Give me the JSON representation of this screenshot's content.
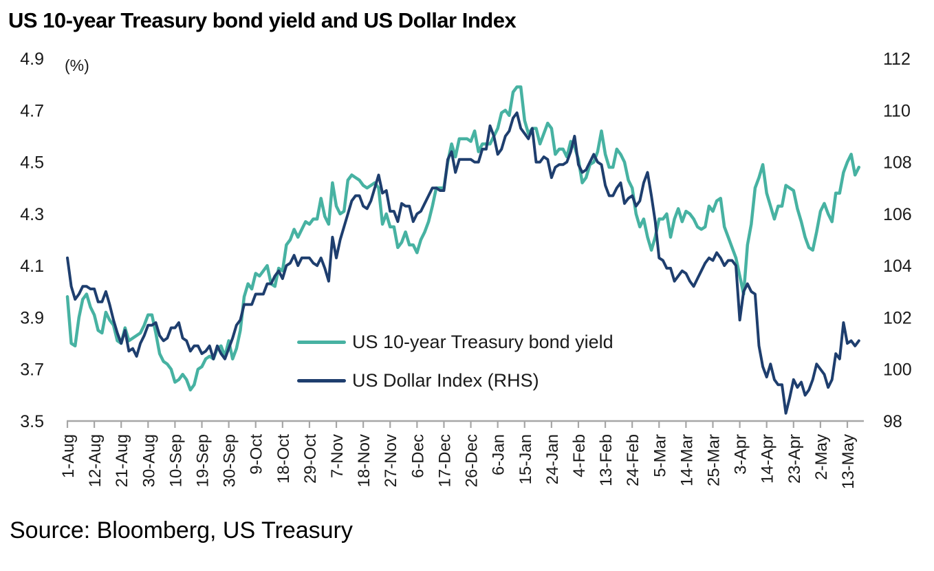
{
  "title": "US 10-year Treasury bond yield and US Dollar Index",
  "source": "Source: Bloomberg, US Treasury",
  "colors": {
    "bond_yield": "#47B2A2",
    "dollar_index": "#1E3E6E",
    "axis": "#A6A6A6",
    "text": "#1a1a1a"
  },
  "chart_data": {
    "type": "line",
    "title": "US 10-year Treasury bond yield and US Dollar Index",
    "grid": false,
    "legend_position": "inside-center-left",
    "left_axis": {
      "label": "(%)",
      "min": 3.5,
      "max": 4.9,
      "ticks": [
        4.9,
        4.7,
        4.5,
        4.3,
        4.1,
        3.9,
        3.7,
        3.5
      ]
    },
    "right_axis": {
      "min": 98,
      "max": 112,
      "ticks": [
        112,
        110,
        108,
        106,
        104,
        102,
        100,
        98
      ]
    },
    "x_axis": {
      "description": "daily (weekday) observations, 1-Aug-2024 to 16-May-2025",
      "points": 207,
      "tick_labels": [
        "1-Aug",
        "12-Aug",
        "21-Aug",
        "30-Aug",
        "10-Sep",
        "19-Sep",
        "30-Sep",
        "9-Oct",
        "18-Oct",
        "29-Oct",
        "7-Nov",
        "18-Nov",
        "27-Nov",
        "6-Dec",
        "17-Dec",
        "26-Dec",
        "6-Jan",
        "15-Jan",
        "24-Jan",
        "4-Feb",
        "13-Feb",
        "24-Feb",
        "5-Mar",
        "14-Mar",
        "25-Mar",
        "3-Apr",
        "14-Apr",
        "23-Apr",
        "2-May",
        "13-May"
      ],
      "tick_indices": [
        0,
        7,
        14,
        21,
        28,
        35,
        42,
        49,
        56,
        63,
        70,
        77,
        84,
        91,
        98,
        105,
        112,
        119,
        126,
        133,
        140,
        147,
        154,
        161,
        168,
        175,
        182,
        189,
        196,
        203
      ]
    },
    "series": [
      {
        "name": "US 10-year Treasury bond yield",
        "axis": "left",
        "color": "#47B2A2",
        "line_width": 4.5,
        "values": [
          3.98,
          3.8,
          3.79,
          3.9,
          3.97,
          3.99,
          3.94,
          3.91,
          3.85,
          3.84,
          3.92,
          3.89,
          3.87,
          3.81,
          3.8,
          3.86,
          3.81,
          3.82,
          3.83,
          3.84,
          3.87,
          3.91,
          3.91,
          3.84,
          3.76,
          3.73,
          3.72,
          3.7,
          3.65,
          3.66,
          3.68,
          3.66,
          3.62,
          3.64,
          3.7,
          3.71,
          3.74,
          3.75,
          3.74,
          3.78,
          3.79,
          3.75,
          3.81,
          3.74,
          3.78,
          3.85,
          3.98,
          4.03,
          4.01,
          4.07,
          4.06,
          4.08,
          4.1,
          4.03,
          4.02,
          4.09,
          4.08,
          4.18,
          4.2,
          4.24,
          4.21,
          4.24,
          4.27,
          4.26,
          4.28,
          4.28,
          4.36,
          4.29,
          4.26,
          4.42,
          4.33,
          4.3,
          4.31,
          4.43,
          4.45,
          4.44,
          4.43,
          4.41,
          4.4,
          4.41,
          4.42,
          4.4,
          4.26,
          4.3,
          4.25,
          4.25,
          4.17,
          4.19,
          4.23,
          4.18,
          4.18,
          4.15,
          4.2,
          4.23,
          4.27,
          4.33,
          4.4,
          4.4,
          4.4,
          4.5,
          4.57,
          4.52,
          4.59,
          4.59,
          4.59,
          4.58,
          4.62,
          4.54,
          4.57,
          4.57,
          4.57,
          4.6,
          4.63,
          4.69,
          4.7,
          4.68,
          4.77,
          4.79,
          4.79,
          4.66,
          4.61,
          4.63,
          4.63,
          4.57,
          4.61,
          4.65,
          4.63,
          4.53,
          4.55,
          4.55,
          4.52,
          4.58,
          4.56,
          4.51,
          4.42,
          4.44,
          4.49,
          4.5,
          4.54,
          4.62,
          4.53,
          4.48,
          4.48,
          4.55,
          4.53,
          4.5,
          4.43,
          4.4,
          4.3,
          4.25,
          4.28,
          4.21,
          4.16,
          4.21,
          4.28,
          4.28,
          4.3,
          4.21,
          4.28,
          4.32,
          4.27,
          4.31,
          4.3,
          4.28,
          4.25,
          4.24,
          4.25,
          4.33,
          4.31,
          4.35,
          4.36,
          4.25,
          4.21,
          4.17,
          4.13,
          4.06,
          3.99,
          4.18,
          4.26,
          4.4,
          4.44,
          4.49,
          4.38,
          4.33,
          4.28,
          4.33,
          4.33,
          4.41,
          4.4,
          4.39,
          4.32,
          4.27,
          4.21,
          4.17,
          4.16,
          4.23,
          4.31,
          4.34,
          4.3,
          4.27,
          4.38,
          4.38,
          4.46,
          4.5,
          4.53,
          4.45,
          4.48
        ]
      },
      {
        "name": "US Dollar Index (RHS)",
        "axis": "right",
        "color": "#1E3E6E",
        "line_width": 4,
        "values": [
          104.3,
          103.2,
          102.7,
          102.9,
          103.2,
          103.2,
          103.1,
          103.1,
          102.6,
          102.6,
          103.0,
          102.5,
          101.9,
          101.4,
          101.0,
          101.5,
          100.7,
          100.8,
          100.5,
          101.0,
          101.3,
          101.7,
          101.7,
          101.8,
          101.3,
          101.1,
          101.2,
          101.6,
          101.6,
          101.8,
          101.2,
          101.1,
          100.7,
          100.9,
          100.9,
          100.6,
          100.7,
          100.9,
          100.4,
          100.9,
          100.6,
          100.4,
          100.8,
          101.2,
          101.7,
          101.9,
          102.5,
          102.5,
          102.5,
          102.9,
          102.9,
          102.9,
          103.3,
          103.3,
          103.6,
          103.8,
          103.5,
          104.0,
          104.1,
          104.4,
          104.0,
          104.3,
          104.3,
          104.3,
          104.1,
          104.0,
          104.3,
          103.9,
          103.4,
          105.1,
          104.3,
          105.0,
          105.5,
          106.0,
          106.5,
          106.7,
          106.7,
          106.3,
          106.2,
          106.5,
          107.0,
          107.5,
          106.8,
          106.9,
          106.1,
          106.1,
          105.7,
          106.4,
          106.3,
          106.3,
          105.7,
          106.0,
          106.1,
          106.4,
          106.7,
          107.0,
          107.0,
          106.9,
          106.9,
          108.1,
          108.4,
          107.6,
          108.1,
          108.1,
          108.1,
          108.1,
          108.0,
          108.0,
          108.5,
          108.5,
          109.4,
          109.0,
          108.3,
          108.5,
          109.0,
          109.2,
          109.7,
          109.9,
          109.3,
          109.1,
          108.9,
          109.3,
          108.0,
          108.0,
          108.2,
          108.1,
          107.4,
          107.8,
          107.9,
          107.9,
          108.0,
          108.4,
          109.0,
          107.9,
          107.6,
          107.7,
          108.0,
          108.3,
          108.0,
          107.9,
          107.1,
          106.7,
          106.7,
          107.0,
          107.2,
          106.4,
          106.6,
          106.7,
          106.3,
          106.5,
          107.2,
          107.6,
          106.7,
          105.7,
          104.3,
          104.2,
          103.9,
          103.9,
          103.4,
          103.6,
          103.8,
          103.7,
          103.4,
          103.2,
          103.5,
          103.8,
          104.1,
          104.3,
          104.2,
          104.5,
          104.3,
          104.0,
          104.2,
          104.2,
          104.0,
          101.9,
          103.0,
          103.3,
          103.0,
          102.9,
          100.9,
          100.1,
          99.7,
          100.2,
          99.6,
          99.4,
          99.4,
          98.3,
          98.9,
          99.6,
          99.3,
          99.5,
          99.0,
          99.2,
          99.6,
          100.2,
          100.0,
          99.8,
          99.3,
          99.6,
          100.6,
          100.4,
          101.8,
          101.0,
          101.1,
          100.9,
          101.1
        ]
      }
    ]
  }
}
